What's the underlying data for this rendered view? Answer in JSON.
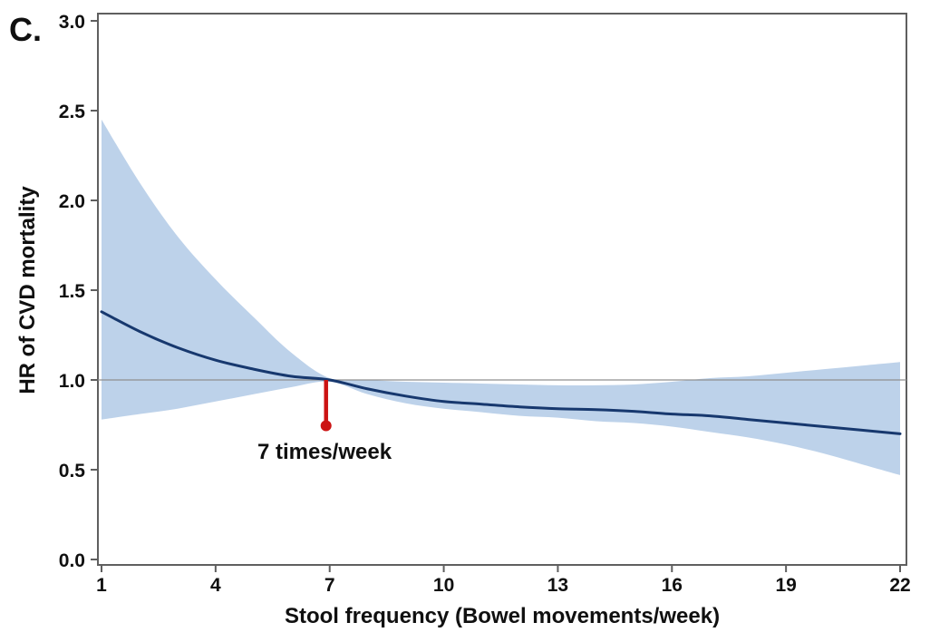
{
  "panel_label": "C.",
  "colors": {
    "band_fill": "#bdd2ea",
    "spline_line": "#17386e",
    "reference_line": "#8f8f8f",
    "marker_red": "#cc1414",
    "frame": "#5f5f5f",
    "text": "#101010",
    "background": "#ffffff"
  },
  "chart_data": {
    "type": "line",
    "title": "",
    "xlabel": "Stool frequency (Bowel movements/week)",
    "ylabel": "HR of CVD mortality",
    "xlim": [
      1,
      22
    ],
    "ylim": [
      0.0,
      3.0
    ],
    "grid": false,
    "legend": "none",
    "x_ticks": [
      1,
      4,
      7,
      10,
      13,
      16,
      19,
      22
    ],
    "x_tick_labels": [
      "1",
      "4",
      "7",
      "10",
      "13",
      "16",
      "19",
      "22"
    ],
    "y_ticks": [
      0.0,
      0.5,
      1.0,
      1.5,
      2.0,
      2.5,
      3.0
    ],
    "y_tick_labels": [
      "0.0",
      "0.5",
      "1.0",
      "1.5",
      "2.0",
      "2.5",
      "3.0"
    ],
    "reference_line_y": 1.0,
    "annotation": {
      "label": "7 times/week",
      "x": 7,
      "from_y": 1.0,
      "to_y": 0.745
    },
    "x": [
      1,
      2,
      3,
      4,
      5,
      6,
      7,
      8,
      9,
      10,
      11,
      12,
      13,
      14,
      15,
      16,
      17,
      18,
      19,
      20,
      21,
      22
    ],
    "series": [
      {
        "name": "HR spline estimate",
        "values": [
          1.38,
          1.27,
          1.18,
          1.11,
          1.06,
          1.02,
          1.0,
          0.95,
          0.91,
          0.88,
          0.865,
          0.85,
          0.84,
          0.835,
          0.825,
          0.81,
          0.8,
          0.78,
          0.76,
          0.74,
          0.72,
          0.7
        ]
      },
      {
        "name": "95% CI upper",
        "values": [
          2.45,
          2.1,
          1.8,
          1.56,
          1.35,
          1.15,
          1.01,
          1.0,
          0.99,
          0.985,
          0.98,
          0.975,
          0.97,
          0.97,
          0.975,
          0.99,
          1.01,
          1.02,
          1.04,
          1.06,
          1.08,
          1.1
        ]
      },
      {
        "name": "95% CI lower",
        "values": [
          0.78,
          0.81,
          0.84,
          0.88,
          0.92,
          0.96,
          0.99,
          0.92,
          0.87,
          0.84,
          0.82,
          0.8,
          0.79,
          0.77,
          0.76,
          0.74,
          0.71,
          0.68,
          0.64,
          0.59,
          0.53,
          0.47
        ]
      }
    ]
  }
}
